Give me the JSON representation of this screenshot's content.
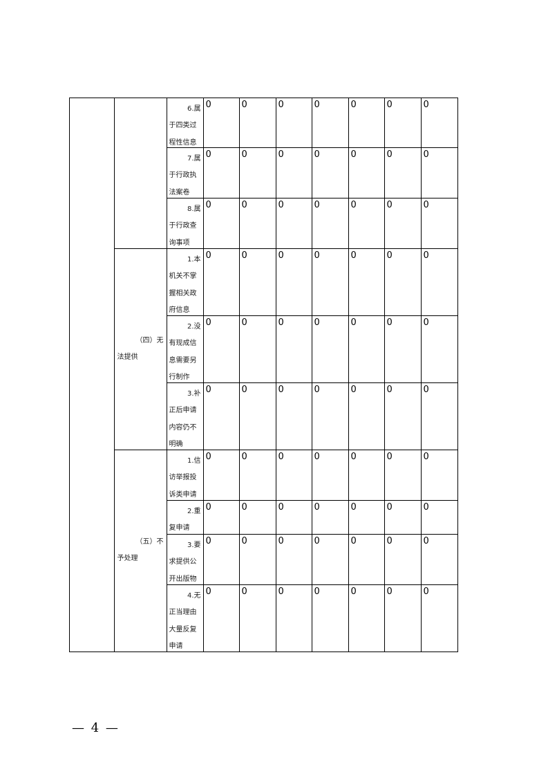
{
  "groups": [
    {
      "lines": [],
      "rows": [
        {
          "label": [
            "6.属",
            "于四类过",
            "程性信息"
          ],
          "values": [
            "0",
            "0",
            "0",
            "0",
            "0",
            "0",
            "0"
          ]
        },
        {
          "label": [
            "7.属",
            "于行政执",
            "法案卷"
          ],
          "values": [
            "0",
            "0",
            "0",
            "0",
            "0",
            "0",
            "0"
          ]
        },
        {
          "label": [
            "8.属",
            "于行政查",
            "询事项"
          ],
          "values": [
            "0",
            "0",
            "0",
            "0",
            "0",
            "0",
            "0"
          ]
        }
      ]
    },
    {
      "lines": [
        "（四）无",
        "法提供"
      ],
      "rows": [
        {
          "label": [
            "1.本",
            "机关不掌",
            "握相关政",
            "府信息"
          ],
          "values": [
            "0",
            "0",
            "0",
            "0",
            "0",
            "0",
            "0"
          ]
        },
        {
          "label": [
            "2.没",
            "有现成信",
            "息需要另",
            "行制作"
          ],
          "values": [
            "0",
            "0",
            "0",
            "0",
            "0",
            "0",
            "0"
          ]
        },
        {
          "label": [
            "3.补",
            "正后申请",
            "内容仍不",
            "明确"
          ],
          "values": [
            "0",
            "0",
            "0",
            "0",
            "0",
            "0",
            "0"
          ]
        }
      ]
    },
    {
      "lines": [
        "（五）不",
        "予处理"
      ],
      "rows": [
        {
          "label": [
            "1.信",
            "访举报投",
            "诉类申请"
          ],
          "values": [
            "0",
            "0",
            "0",
            "0",
            "0",
            "0",
            "0"
          ]
        },
        {
          "label": [
            "2.重",
            "复申请"
          ],
          "values": [
            "0",
            "0",
            "0",
            "0",
            "0",
            "0",
            "0"
          ]
        },
        {
          "label": [
            "3.要",
            "求提供公",
            "开出版物"
          ],
          "values": [
            "0",
            "0",
            "0",
            "0",
            "0",
            "0",
            "0"
          ]
        },
        {
          "label": [
            "4.无",
            "正当理由",
            "大量反复",
            "申请"
          ],
          "values": [
            "0",
            "0",
            "0",
            "0",
            "0",
            "0",
            "0"
          ]
        }
      ]
    }
  ],
  "page_number": "— 4 —"
}
